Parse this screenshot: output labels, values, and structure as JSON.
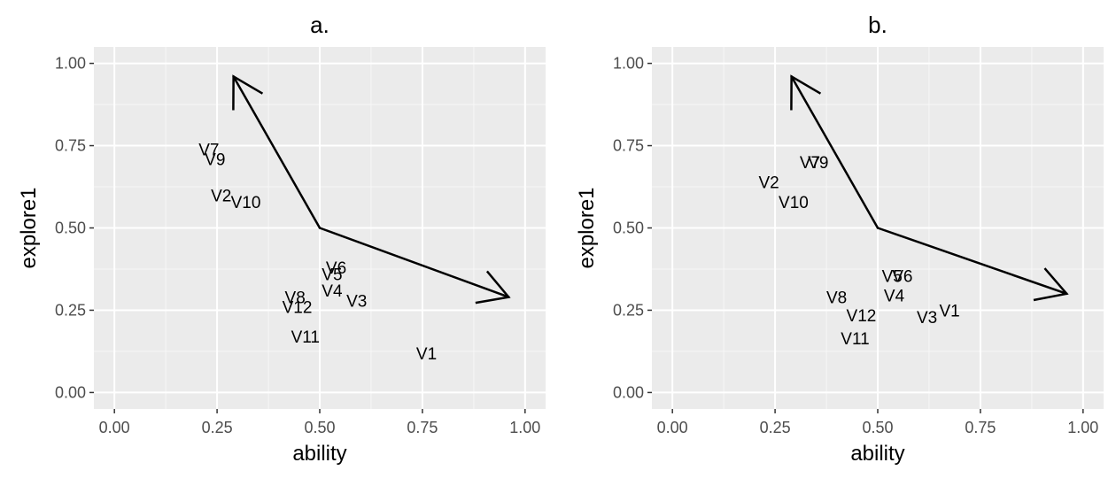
{
  "chart_data": [
    {
      "type": "scatter",
      "title": "a.",
      "xlabel": "ability",
      "ylabel": "explore1",
      "xlim": [
        -0.05,
        1.05
      ],
      "ylim": [
        -0.05,
        1.05
      ],
      "x_ticks": [
        "0.00",
        "0.25",
        "0.50",
        "0.75",
        "1.00"
      ],
      "y_ticks": [
        "0.00",
        "0.25",
        "0.50",
        "0.75",
        "1.00"
      ],
      "grid": true,
      "points": [
        {
          "label": "V7",
          "x": 0.23,
          "y": 0.74
        },
        {
          "label": "V9",
          "x": 0.245,
          "y": 0.71
        },
        {
          "label": "V2",
          "x": 0.26,
          "y": 0.6
        },
        {
          "label": "V10",
          "x": 0.32,
          "y": 0.58
        },
        {
          "label": "V6",
          "x": 0.54,
          "y": 0.38
        },
        {
          "label": "V5",
          "x": 0.53,
          "y": 0.36
        },
        {
          "label": "V4",
          "x": 0.53,
          "y": 0.31
        },
        {
          "label": "V3",
          "x": 0.59,
          "y": 0.28
        },
        {
          "label": "V8",
          "x": 0.44,
          "y": 0.29
        },
        {
          "label": "V12",
          "x": 0.445,
          "y": 0.26
        },
        {
          "label": "V11",
          "x": 0.465,
          "y": 0.17
        },
        {
          "label": "V1",
          "x": 0.76,
          "y": 0.12
        }
      ],
      "arrows": [
        {
          "x1": 0.5,
          "y1": 0.5,
          "x2": 0.29,
          "y2": 0.96
        },
        {
          "x1": 0.5,
          "y1": 0.5,
          "x2": 0.96,
          "y2": 0.29
        }
      ]
    },
    {
      "type": "scatter",
      "title": "b.",
      "xlabel": "ability",
      "ylabel": "explore1",
      "xlim": [
        -0.05,
        1.05
      ],
      "ylim": [
        -0.05,
        1.05
      ],
      "x_ticks": [
        "0.00",
        "0.25",
        "0.50",
        "0.75",
        "1.00"
      ],
      "y_ticks": [
        "0.00",
        "0.25",
        "0.50",
        "0.75",
        "1.00"
      ],
      "grid": true,
      "points": [
        {
          "label": "V7",
          "x": 0.335,
          "y": 0.7
        },
        {
          "label": "V9",
          "x": 0.355,
          "y": 0.7
        },
        {
          "label": "V2",
          "x": 0.235,
          "y": 0.64
        },
        {
          "label": "V10",
          "x": 0.295,
          "y": 0.58
        },
        {
          "label": "V5",
          "x": 0.535,
          "y": 0.355
        },
        {
          "label": "V6",
          "x": 0.56,
          "y": 0.355
        },
        {
          "label": "V4",
          "x": 0.54,
          "y": 0.295
        },
        {
          "label": "V8",
          "x": 0.4,
          "y": 0.29
        },
        {
          "label": "V12",
          "x": 0.46,
          "y": 0.235
        },
        {
          "label": "V3",
          "x": 0.62,
          "y": 0.23
        },
        {
          "label": "V1",
          "x": 0.675,
          "y": 0.25
        },
        {
          "label": "V11",
          "x": 0.445,
          "y": 0.165
        }
      ],
      "arrows": [
        {
          "x1": 0.5,
          "y1": 0.5,
          "x2": 0.29,
          "y2": 0.96
        },
        {
          "x1": 0.5,
          "y1": 0.5,
          "x2": 0.96,
          "y2": 0.3
        }
      ]
    }
  ]
}
